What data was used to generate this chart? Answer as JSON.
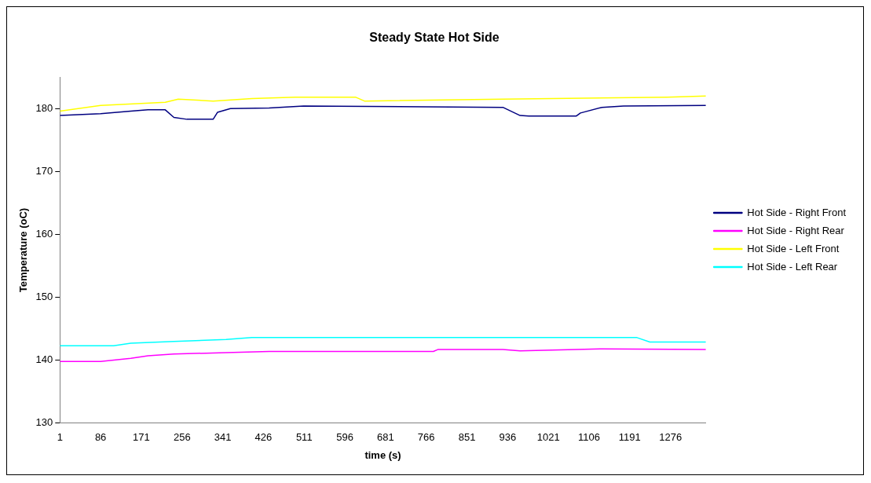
{
  "chart_data": {
    "type": "line",
    "title": "Steady State Hot Side",
    "xlabel": "time (s)",
    "ylabel": "Temperature (oC)",
    "xlim": [
      1,
      1350
    ],
    "xticks": [
      1,
      86,
      171,
      256,
      341,
      426,
      511,
      596,
      681,
      766,
      851,
      936,
      1021,
      1106,
      1191,
      1276
    ],
    "ylim": [
      130,
      185
    ],
    "yticks": [
      130,
      140,
      150,
      160,
      170,
      180
    ],
    "grid": false,
    "legend": "right",
    "marker": "none",
    "line_style": "solid",
    "series": [
      {
        "name": "Hot Side - Right Front",
        "color": "#000080",
        "x": [
          1,
          86,
          149,
          185,
          221,
          239,
          266,
          321,
          330,
          357,
          438,
          510,
          926,
          962,
          980,
          1079,
          1088,
          1133,
          1178,
          1350
        ],
        "values": [
          178.9,
          179.2,
          179.6,
          179.8,
          179.8,
          178.6,
          178.3,
          178.3,
          179.4,
          180.0,
          180.1,
          180.4,
          180.2,
          178.9,
          178.8,
          178.8,
          179.3,
          180.2,
          180.4,
          180.5
        ]
      },
      {
        "name": "Hot Side - Right Rear",
        "color": "#ff00ff",
        "x": [
          1,
          86,
          149,
          185,
          239,
          348,
          438,
          781,
          790,
          926,
          962,
          1133,
          1350
        ],
        "values": [
          139.8,
          139.8,
          140.3,
          140.7,
          141.0,
          141.2,
          141.4,
          141.4,
          141.7,
          141.7,
          141.5,
          141.8,
          141.7
        ]
      },
      {
        "name": "Hot Side - Left Front",
        "color": "#ffff00",
        "x": [
          1,
          86,
          221,
          248,
          321,
          402,
          492,
          619,
          637,
          926,
          1269,
          1350
        ],
        "values": [
          179.6,
          180.5,
          181.0,
          181.5,
          181.2,
          181.6,
          181.8,
          181.8,
          181.2,
          181.5,
          181.8,
          182.0
        ]
      },
      {
        "name": "Hot Side - Left Rear",
        "color": "#00ffff",
        "x": [
          1,
          113,
          149,
          239,
          348,
          402,
          1206,
          1233,
          1350
        ],
        "values": [
          142.3,
          142.3,
          142.7,
          143.0,
          143.3,
          143.6,
          143.6,
          142.9,
          142.9
        ]
      }
    ]
  }
}
